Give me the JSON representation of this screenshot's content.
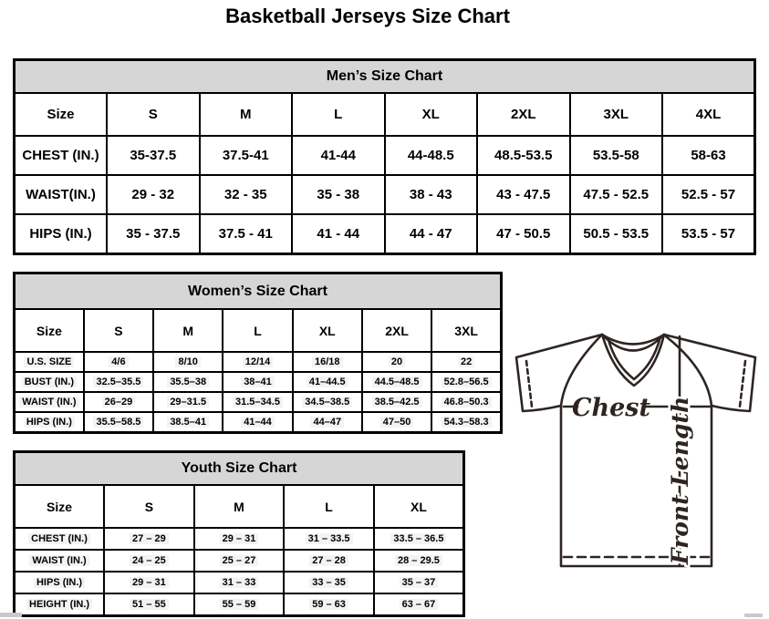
{
  "page": {
    "title": "Basketball Jerseys Size Chart"
  },
  "tables": {
    "men": {
      "title": "Men’s Size Chart",
      "header": [
        "Size",
        "S",
        "M",
        "L",
        "XL",
        "2XL",
        "3XL",
        "4XL"
      ],
      "rows": [
        [
          "CHEST (IN.)",
          "35-37.5",
          "37.5-41",
          "41-44",
          "44-48.5",
          "48.5-53.5",
          "53.5-58",
          "58-63"
        ],
        [
          "WAIST(IN.)",
          "29 - 32",
          "32 - 35",
          "35 - 38",
          "38 - 43",
          "43 - 47.5",
          "47.5 - 52.5",
          "52.5 - 57"
        ],
        [
          "HIPS (IN.)",
          "35 - 37.5",
          "37.5 - 41",
          "41 - 44",
          "44 - 47",
          "47 - 50.5",
          "50.5 - 53.5",
          "53.5 - 57"
        ]
      ]
    },
    "women": {
      "title": "Women’s Size Chart",
      "header": [
        "Size",
        "S",
        "M",
        "L",
        "XL",
        "2XL",
        "3XL"
      ],
      "rows": [
        [
          "U.S. SIZE",
          "4/6",
          "8/10",
          "12/14",
          "16/18",
          "20",
          "22"
        ],
        [
          "BUST (IN.)",
          "32.5–35.5",
          "35.5–38",
          "38–41",
          "41–44.5",
          "44.5–48.5",
          "52.8–56.5"
        ],
        [
          "WAIST (IN.)",
          "26–29",
          "29–31.5",
          "31.5–34.5",
          "34.5–38.5",
          "38.5–42.5",
          "46.8–50.3"
        ],
        [
          "HIPS (IN.)",
          "35.5–58.5",
          "38.5–41",
          "41–44",
          "44–47",
          "47–50",
          "54.3–58.3"
        ]
      ]
    },
    "youth": {
      "title": "Youth Size Chart",
      "header": [
        "Size",
        "S",
        "M",
        "L",
        "XL"
      ],
      "rows": [
        [
          "CHEST (IN.)",
          "27 – 29",
          "29 – 31",
          "31 – 33.5",
          "33.5 – 36.5"
        ],
        [
          "WAIST (IN.)",
          "24 – 25",
          "25 – 27",
          "27 – 28",
          "28 – 29.5"
        ],
        [
          "HIPS (IN.)",
          "29 – 31",
          "31 – 33",
          "33 – 35",
          "35 – 37"
        ],
        [
          "HEIGHT (IN.)",
          "51 – 55",
          "55 – 59",
          "59 – 63",
          "63 – 67"
        ]
      ]
    }
  },
  "diagram": {
    "chest_label": "Chest",
    "front_length_label": "Front Length",
    "line_color": "#2e2523"
  },
  "colors": {
    "band_background": "#d6d6d6",
    "table_border": "#000000",
    "highlight": "#f3f3f3"
  }
}
